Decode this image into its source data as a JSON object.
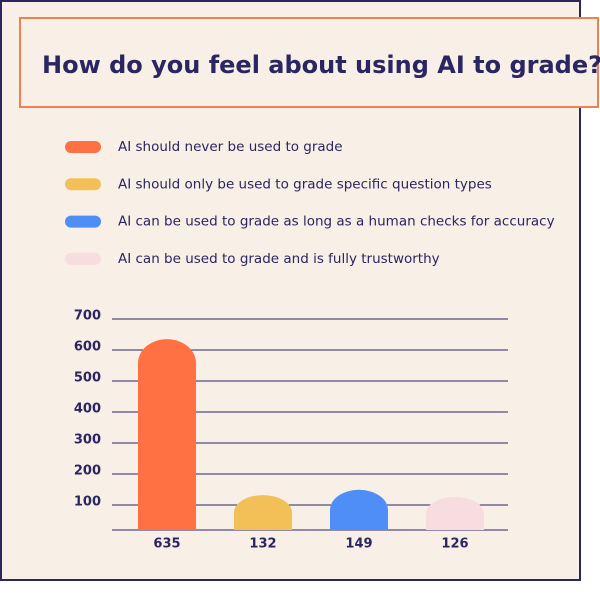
{
  "chart_data": {
    "type": "bar",
    "title": "How do you feel about using AI to grade?",
    "categories": [
      "AI should never be used to grade",
      "AI should only be used to grade specific question types",
      "AI can be used to grade as long as a human checks for accuracy",
      "AI can be used to grade and is fully trustworthy"
    ],
    "colors": [
      "#ff7043",
      "#f2c057",
      "#4d8ef7",
      "#f7dde0"
    ],
    "values": [
      635,
      132,
      149,
      126
    ],
    "ylim": [
      0,
      700
    ],
    "yticks": [
      100,
      200,
      300,
      400,
      500,
      600,
      700
    ],
    "grid": true
  }
}
